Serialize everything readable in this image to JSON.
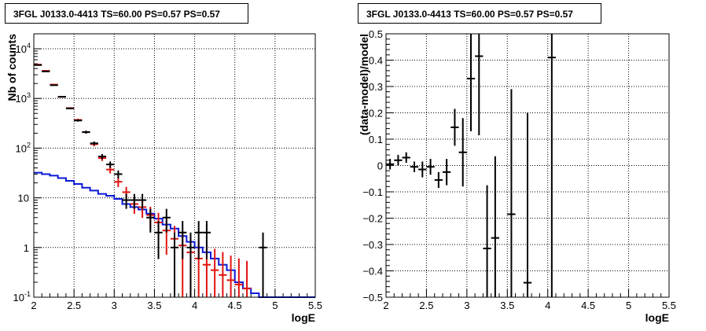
{
  "chart_data": [
    {
      "type": "histogram",
      "title": "3FGL J0133.0-4413 TS=60.00 PS=0.57 PS=0.57",
      "xlabel": "logE",
      "ylabel": "Nb of counts",
      "xlim": [
        2,
        5.5
      ],
      "ylim": [
        0.1,
        20000
      ],
      "yscale": "log",
      "xticks": [
        "2",
        "2.5",
        "3",
        "3.5",
        "4",
        "4.5",
        "5",
        "5.5"
      ],
      "yticks": [
        "10^-1",
        "1",
        "10",
        "10^2",
        "10^3",
        "10^4"
      ],
      "grid": true,
      "series": [
        {
          "color": "#000000",
          "style": "errorbars",
          "x": [
            2.05,
            2.15,
            2.25,
            2.35,
            2.45,
            2.55,
            2.65,
            2.75,
            2.85,
            2.95,
            3.05,
            3.15,
            3.25,
            3.35,
            3.45,
            3.55,
            3.65,
            3.75,
            3.85,
            3.95,
            4.05,
            4.15,
            4.25,
            4.35,
            4.45,
            4.55,
            4.65,
            4.75,
            4.85
          ],
          "y": [
            4700,
            3500,
            1850,
            1080,
            630,
            360,
            210,
            125,
            68,
            47,
            30,
            9,
            9,
            9,
            4,
            2,
            4,
            1,
            2,
            1,
            2,
            2,
            0,
            0,
            0,
            0,
            0,
            0,
            1
          ]
        },
        {
          "color": "#e0140f",
          "style": "errorbars",
          "x": [
            2.05,
            2.15,
            2.25,
            2.35,
            2.45,
            2.55,
            2.65,
            2.75,
            2.85,
            2.95,
            3.05,
            3.15,
            3.25,
            3.35,
            3.45,
            3.55,
            3.65,
            3.75,
            3.85,
            3.95,
            4.05,
            4.15,
            4.25,
            4.35,
            4.45,
            4.55,
            4.65
          ],
          "y": [
            4800,
            3600,
            1900,
            1080,
            640,
            370,
            210,
            120,
            63,
            37,
            21,
            13,
            7.5,
            6.5,
            4.5,
            3.2,
            2.2,
            1.5,
            1.1,
            0.8,
            0.6,
            0.45,
            0.35,
            0.28,
            0.22,
            0.18,
            0.15
          ]
        },
        {
          "color": "#0b19d6",
          "style": "step",
          "edges": [
            2.0,
            2.1,
            2.2,
            2.3,
            2.4,
            2.5,
            2.6,
            2.7,
            2.8,
            2.9,
            3.0,
            3.1,
            3.2,
            3.3,
            3.4,
            3.5,
            3.6,
            3.7,
            3.8,
            3.9,
            4.0,
            4.1,
            4.2,
            4.3,
            4.4,
            4.5,
            4.6,
            4.7,
            4.8,
            5.5
          ],
          "y": [
            32,
            30,
            28,
            25,
            22,
            19,
            16,
            14,
            12,
            11,
            9.5,
            7.5,
            6.5,
            5.8,
            4.8,
            3.8,
            2.9,
            2.4,
            1.7,
            1.3,
            1.0,
            0.8,
            0.6,
            0.45,
            0.35,
            0.2,
            0.15,
            0.12,
            0.1
          ]
        }
      ]
    },
    {
      "type": "scatter",
      "title": "3FGL J0133.0-4413 TS=60.00 PS=0.57 PS=0.57",
      "xlabel": "logE",
      "ylabel": "(data-model)/model",
      "xlim": [
        2,
        5.5
      ],
      "ylim": [
        -0.5,
        0.5
      ],
      "xticks": [
        "2",
        "2.5",
        "3",
        "3.5",
        "4",
        "4.5",
        "5",
        "5.5"
      ],
      "yticks": [
        "-0.5",
        "-0.4",
        "-0.3",
        "-0.2",
        "-0.1",
        "0",
        "0.1",
        "0.2",
        "0.3",
        "0.4",
        "0.5"
      ],
      "grid": true,
      "points": [
        {
          "x": 2.05,
          "y": 0.005,
          "err": 0.02
        },
        {
          "x": 2.15,
          "y": 0.02,
          "err": 0.02
        },
        {
          "x": 2.25,
          "y": 0.03,
          "err": 0.02
        },
        {
          "x": 2.35,
          "y": -0.005,
          "err": 0.02
        },
        {
          "x": 2.45,
          "y": -0.015,
          "err": 0.03
        },
        {
          "x": 2.55,
          "y": -0.005,
          "err": 0.03
        },
        {
          "x": 2.65,
          "y": -0.055,
          "err": 0.03
        },
        {
          "x": 2.75,
          "y": -0.025,
          "err": 0.05
        },
        {
          "x": 2.85,
          "y": 0.145,
          "err": 0.07
        },
        {
          "x": 2.95,
          "y": 0.05,
          "err": 0.13
        },
        {
          "x": 3.05,
          "y": 0.33,
          "err": 0.2
        },
        {
          "x": 3.15,
          "y": 0.415,
          "err": 0.3
        },
        {
          "x": 3.25,
          "y": -0.315,
          "err": 0.24
        },
        {
          "x": 3.35,
          "y": -0.275,
          "err": 0.31
        },
        {
          "x": 3.55,
          "y": -0.185,
          "err": 0.475
        },
        {
          "x": 3.75,
          "y": -0.445,
          "err": 0.645
        },
        {
          "x": 4.05,
          "y": 0.41,
          "err": 1.0
        }
      ]
    }
  ]
}
